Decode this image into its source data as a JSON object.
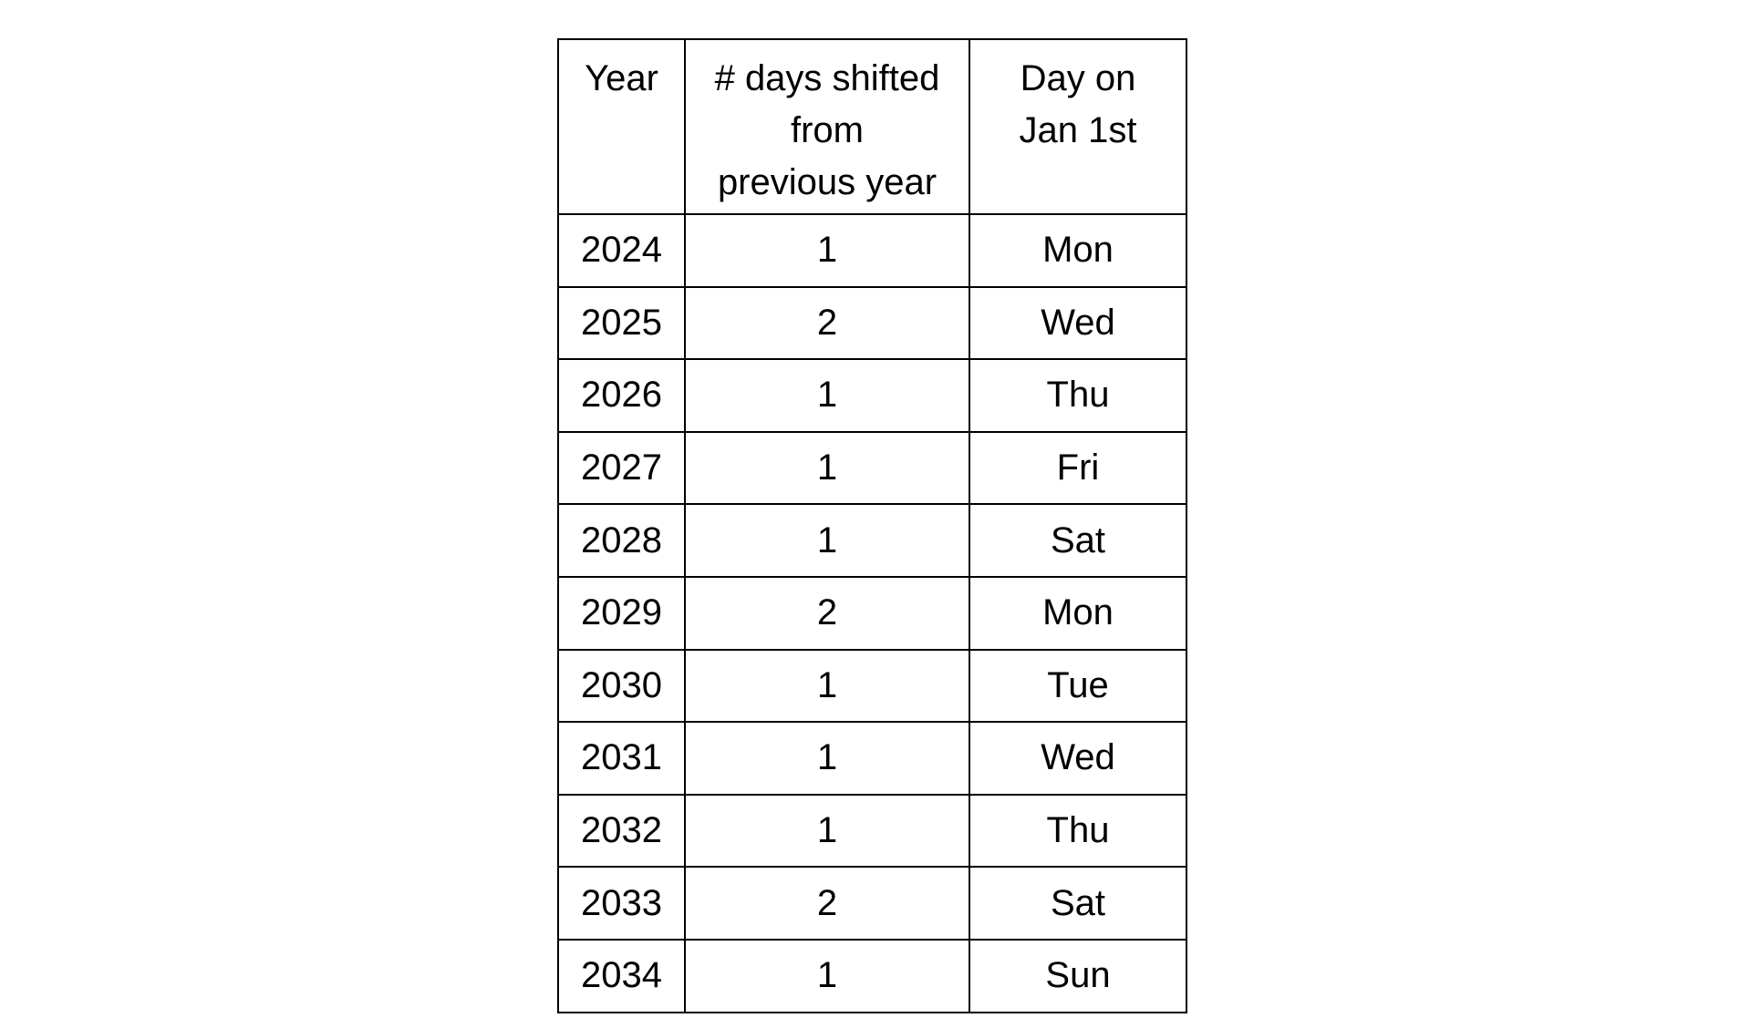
{
  "table": {
    "headers": [
      "Year",
      "# days shifted from previous year",
      "Day on Jan 1st"
    ],
    "header_lines": [
      [
        "Year"
      ],
      [
        "# days shifted",
        "from",
        "previous year"
      ],
      [
        "Day on",
        "Jan 1st"
      ]
    ],
    "rows": [
      [
        "2024",
        "1",
        "Mon"
      ],
      [
        "2025",
        "2",
        "Wed"
      ],
      [
        "2026",
        "1",
        "Thu"
      ],
      [
        "2027",
        "1",
        "Fri"
      ],
      [
        "2028",
        "1",
        "Sat"
      ],
      [
        "2029",
        "2",
        "Mon"
      ],
      [
        "2030",
        "1",
        "Tue"
      ],
      [
        "2031",
        "1",
        "Wed"
      ],
      [
        "2032",
        "1",
        "Thu"
      ],
      [
        "2033",
        "2",
        "Sat"
      ],
      [
        "2034",
        "1",
        "Sun"
      ]
    ]
  }
}
